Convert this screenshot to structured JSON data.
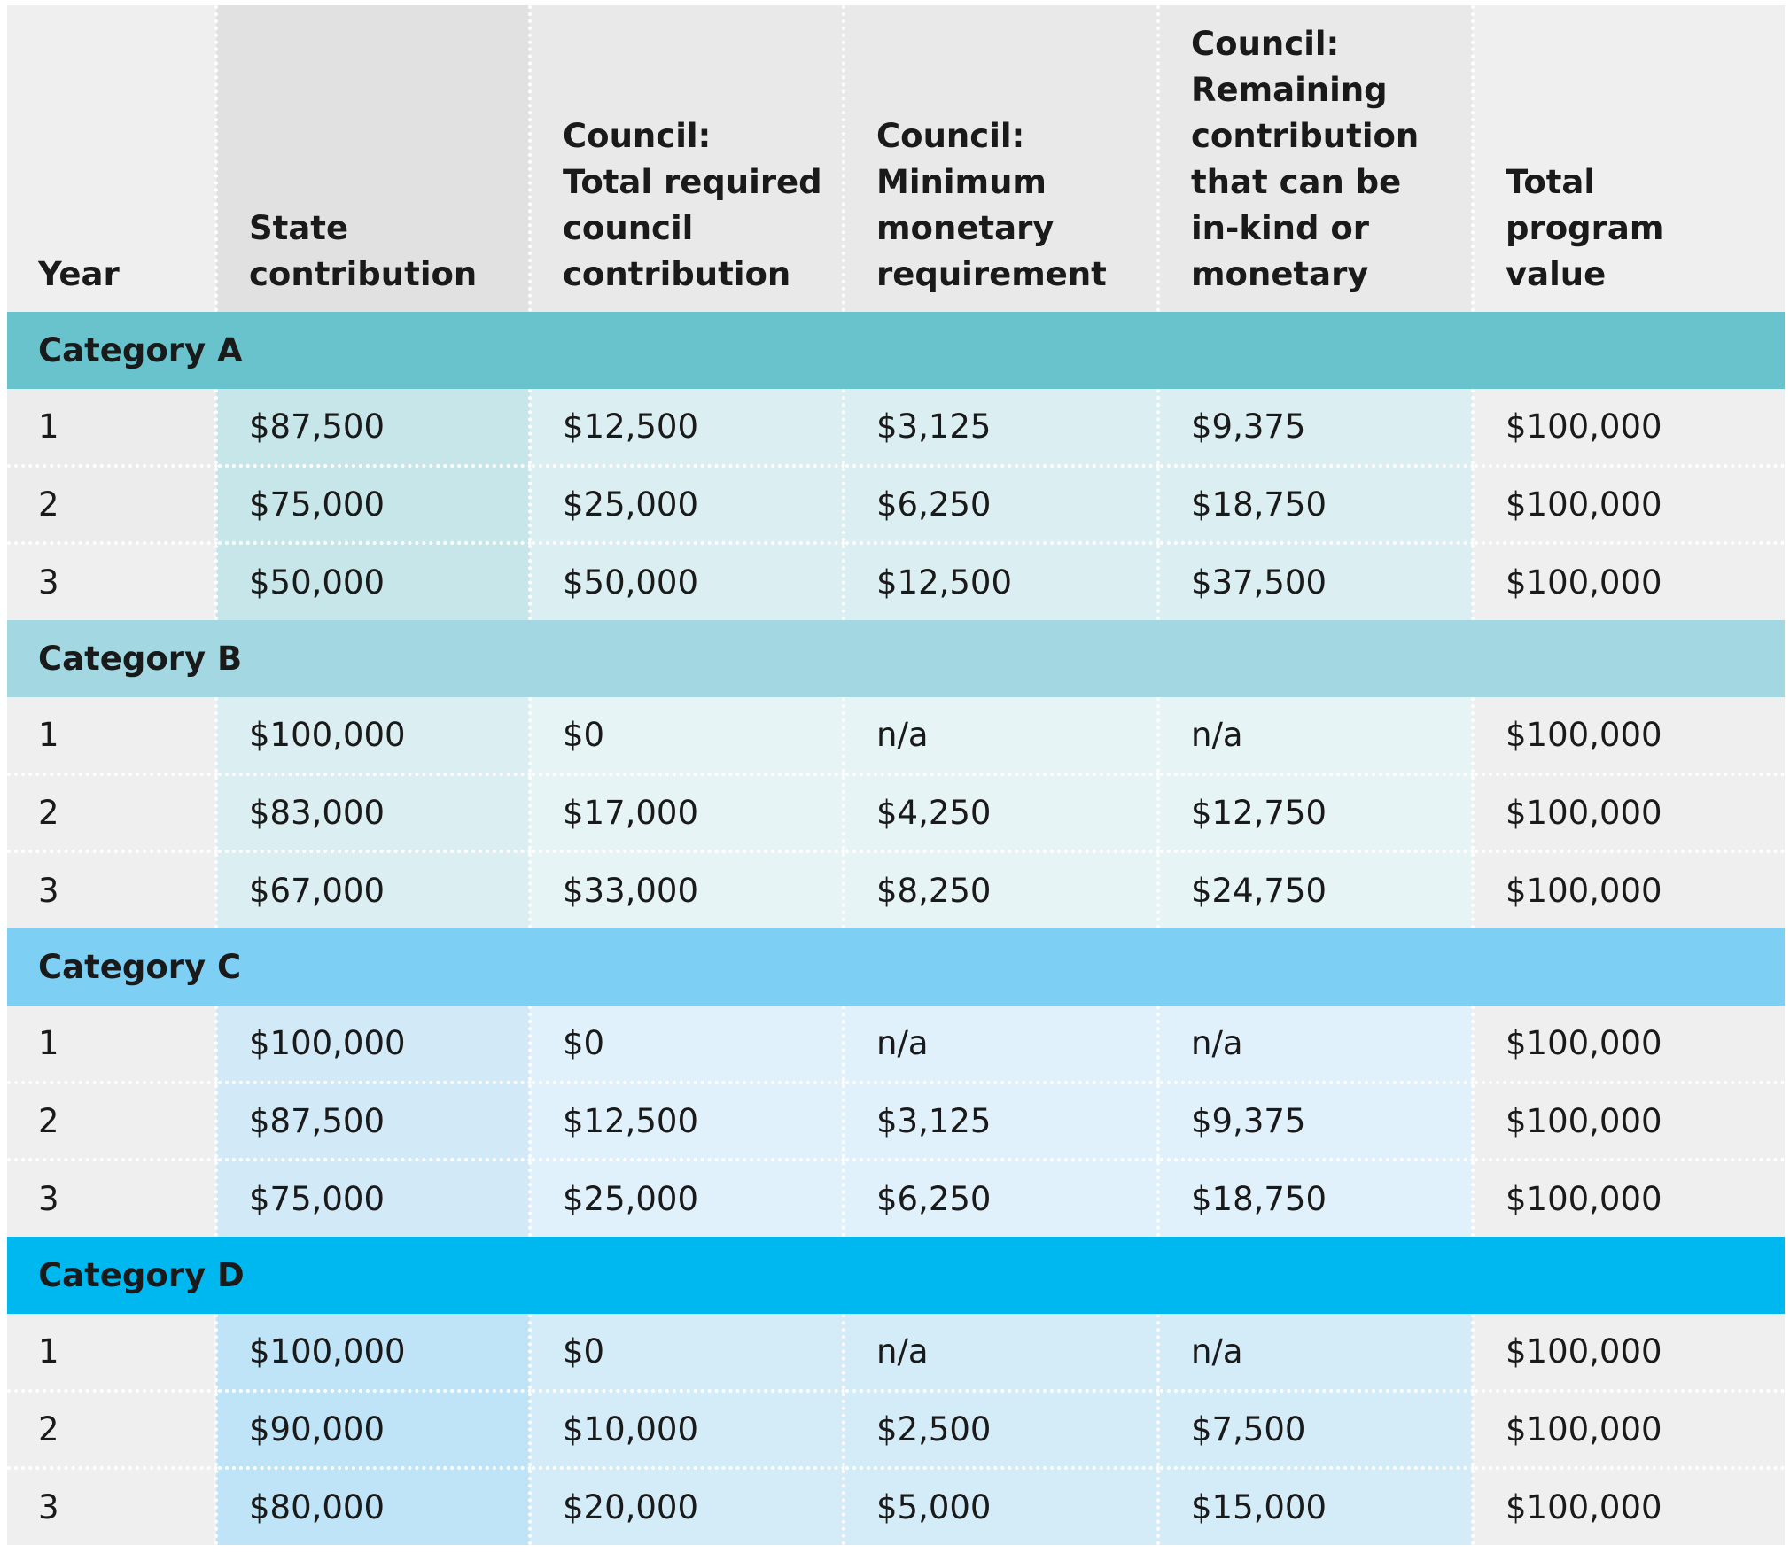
{
  "headers": [
    "Year",
    "State\ncontribution",
    "Council:\nTotal required\ncouncil\ncontribution",
    "Council:\nMinimum\nmonetary\nrequirement",
    "Council:\nRemaining\ncontribution\nthat can be\nin-kind or\nmonetary",
    "Total\nprogram\nvalue"
  ],
  "categories": [
    {
      "label": "Category A",
      "color": "#68c3cd",
      "rows": [
        [
          "1",
          "$87,500",
          "$12,500",
          "$3,125",
          "$9,375",
          "$100,000"
        ],
        [
          "2",
          "$75,000",
          "$25,000",
          "$6,250",
          "$18,750",
          "$100,000"
        ],
        [
          "3",
          "$50,000",
          "$50,000",
          "$12,500",
          "$37,500",
          "$100,000"
        ]
      ]
    },
    {
      "label": "Category B",
      "color": "#a3d8e3",
      "rows": [
        [
          "1",
          "$100,000",
          "$0",
          "n/a",
          "n/a",
          "$100,000"
        ],
        [
          "2",
          "$83,000",
          "$17,000",
          "$4,250",
          "$12,750",
          "$100,000"
        ],
        [
          "3",
          "$67,000",
          "$33,000",
          "$8,250",
          "$24,750",
          "$100,000"
        ]
      ]
    },
    {
      "label": "Category C",
      "color": "#7dcff4",
      "rows": [
        [
          "1",
          "$100,000",
          "$0",
          "n/a",
          "n/a",
          "$100,000"
        ],
        [
          "2",
          "$87,500",
          "$12,500",
          "$3,125",
          "$9,375",
          "$100,000"
        ],
        [
          "3",
          "$75,000",
          "$25,000",
          "$6,250",
          "$18,750",
          "$100,000"
        ]
      ]
    },
    {
      "label": "Category D",
      "color": "#00b8f0",
      "rows": [
        [
          "1",
          "$100,000",
          "$0",
          "n/a",
          "n/a",
          "$100,000"
        ],
        [
          "2",
          "$90,000",
          "$10,000",
          "$2,500",
          "$7,500",
          "$100,000"
        ],
        [
          "3",
          "$80,000",
          "$20,000",
          "$5,000",
          "$15,000",
          "$100,000"
        ]
      ]
    }
  ]
}
